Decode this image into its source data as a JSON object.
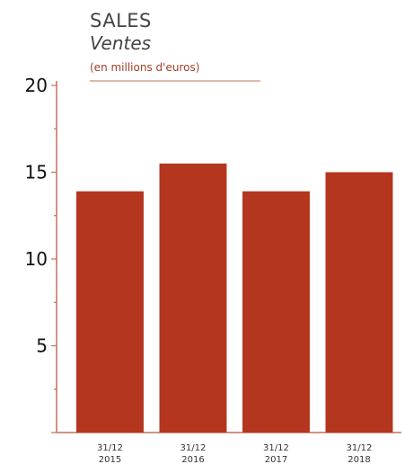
{
  "chart_data": {
    "type": "bar",
    "title": "SALES",
    "subtitle": "Ventes",
    "unit_label": "(en millions d'euros)",
    "categories": [
      [
        "31/12",
        "2015"
      ],
      [
        "31/12",
        "2016"
      ],
      [
        "31/12",
        "2017"
      ],
      [
        "31/12",
        "2018"
      ]
    ],
    "values": [
      13.9,
      15.5,
      13.9,
      15.0
    ],
    "ylim": [
      0,
      20
    ],
    "yticks": [
      5,
      10,
      15,
      20
    ],
    "ytick_labels": [
      "5",
      "10",
      "15",
      "20"
    ],
    "grid": false,
    "colors": {
      "bar": "#b5361f",
      "axis": "#c0705c",
      "text": "#444444"
    }
  }
}
